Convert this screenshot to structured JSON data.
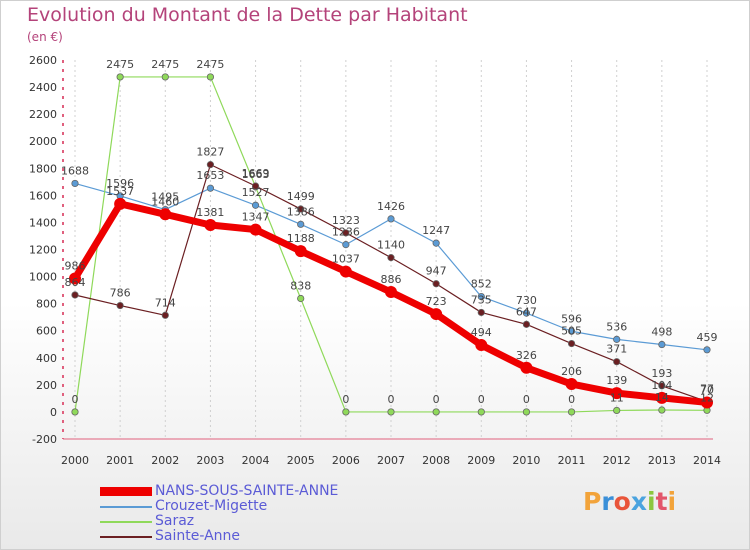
{
  "title": "Evolution du Montant de la Dette par Habitant",
  "subtitle": "(en €)",
  "logo_text": "Proxiti",
  "chart_data": {
    "type": "line",
    "title": "Evolution du Montant de la Dette par Habitant",
    "ylabel": "(en €)",
    "xlabel": "",
    "ylim": [
      -200,
      2600
    ],
    "yticks": [
      -200,
      0,
      200,
      400,
      600,
      800,
      1000,
      1200,
      1400,
      1600,
      1800,
      2000,
      2200,
      2400,
      2600
    ],
    "categories": [
      "2000",
      "2001",
      "2002",
      "2003",
      "2004",
      "2005",
      "2006",
      "2007",
      "2008",
      "2009",
      "2010",
      "2011",
      "2012",
      "2013",
      "2014"
    ],
    "grid": "vertical dashed",
    "legend_position": "bottom-left",
    "series": [
      {
        "name": "NANS-SOUS-SAINTE-ANNE",
        "color": "#ee0000",
        "width": 7,
        "values": [
          986,
          1537,
          1460,
          1381,
          1347,
          1188,
          1037,
          886,
          723,
          494,
          326,
          206,
          139,
          104,
          70
        ],
        "labels": [
          "986",
          "1537",
          "1460",
          "1381",
          "1347",
          "1188",
          "1037",
          "886",
          "723",
          "494",
          "326",
          "206",
          "139",
          "104",
          "70"
        ]
      },
      {
        "name": "Crouzet-Migette",
        "color": "#5b9bd5",
        "width": 1.2,
        "values": [
          1688,
          1596,
          1495,
          1653,
          1527,
          1386,
          1236,
          1426,
          1247,
          852,
          730,
          596,
          536,
          498,
          459
        ],
        "labels": [
          "1688",
          "1596",
          "1495",
          "1653",
          "1527",
          "1386",
          "1236",
          "1426",
          "1247",
          "852",
          "730",
          "596",
          "536",
          "498",
          "459"
        ]
      },
      {
        "name": "Saraz",
        "color": "#8fd95a",
        "width": 1.2,
        "values": [
          0,
          2475,
          2475,
          2475,
          1663,
          838,
          0,
          0,
          0,
          0,
          0,
          0,
          11,
          14,
          12
        ],
        "labels": [
          "0",
          "2475",
          "2475",
          "2475",
          "1663",
          "838",
          "0",
          "0",
          "0",
          "0",
          "0",
          "0",
          "11",
          "14",
          "12"
        ]
      },
      {
        "name": "Sainte-Anne",
        "color": "#6b1f22",
        "width": 1.2,
        "values": [
          864,
          786,
          714,
          1827,
          1669,
          1499,
          1323,
          1140,
          947,
          735,
          647,
          505,
          371,
          193,
          77
        ],
        "labels": [
          "864",
          "786",
          "714",
          "1827",
          "1669",
          "1499",
          "1323",
          "1140",
          "947",
          "735",
          "647",
          "505",
          "371",
          "193",
          "77"
        ]
      }
    ]
  }
}
